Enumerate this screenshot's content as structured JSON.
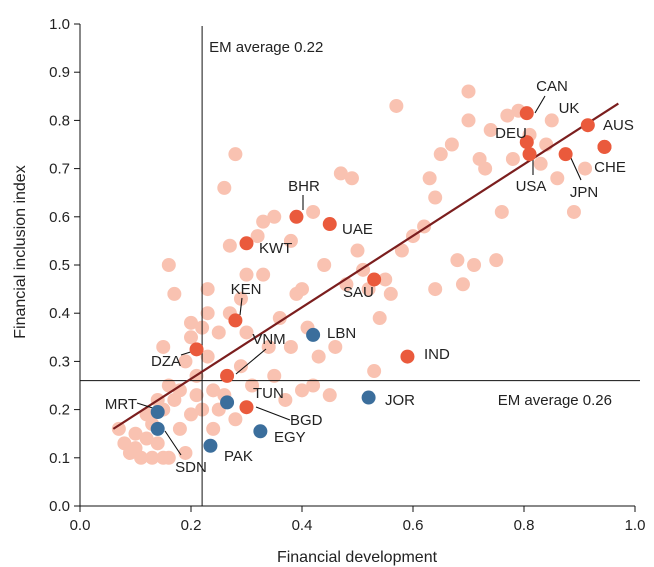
{
  "chart_data": {
    "type": "scatter",
    "xlabel": "Financial development",
    "ylabel": "Financial inclusion index",
    "xlim": [
      0.0,
      1.0
    ],
    "ylim": [
      0.0,
      1.0
    ],
    "x_ticks": [
      "0.0",
      "0.2",
      "0.4",
      "0.6",
      "0.8",
      "1.0"
    ],
    "y_ticks": [
      "0.0",
      "0.1",
      "0.2",
      "0.3",
      "0.4",
      "0.5",
      "0.6",
      "0.7",
      "0.8",
      "0.9",
      "1.0"
    ],
    "grid": false,
    "reference_lines": [
      {
        "orientation": "vertical",
        "value": 0.22,
        "label": "EM average 0.22"
      },
      {
        "orientation": "horizontal",
        "value": 0.26,
        "label": "EM average 0.26"
      }
    ],
    "trend_line": {
      "x": [
        0.06,
        0.97
      ],
      "y": [
        0.16,
        0.835
      ],
      "color": "#7b1e1e"
    },
    "colors": {
      "background_points": "#f9c2b1",
      "highlight_red": "#ea5a3c",
      "highlight_blue": "#3b6e9c"
    },
    "background_points": [
      {
        "x": 0.07,
        "y": 0.16
      },
      {
        "x": 0.08,
        "y": 0.13
      },
      {
        "x": 0.09,
        "y": 0.11
      },
      {
        "x": 0.1,
        "y": 0.12
      },
      {
        "x": 0.1,
        "y": 0.15
      },
      {
        "x": 0.11,
        "y": 0.1
      },
      {
        "x": 0.12,
        "y": 0.14
      },
      {
        "x": 0.12,
        "y": 0.19
      },
      {
        "x": 0.13,
        "y": 0.1
      },
      {
        "x": 0.13,
        "y": 0.17
      },
      {
        "x": 0.14,
        "y": 0.22
      },
      {
        "x": 0.14,
        "y": 0.13
      },
      {
        "x": 0.15,
        "y": 0.1
      },
      {
        "x": 0.15,
        "y": 0.2
      },
      {
        "x": 0.15,
        "y": 0.33
      },
      {
        "x": 0.16,
        "y": 0.1
      },
      {
        "x": 0.16,
        "y": 0.25
      },
      {
        "x": 0.16,
        "y": 0.5
      },
      {
        "x": 0.17,
        "y": 0.22
      },
      {
        "x": 0.17,
        "y": 0.44
      },
      {
        "x": 0.18,
        "y": 0.16
      },
      {
        "x": 0.18,
        "y": 0.24
      },
      {
        "x": 0.19,
        "y": 0.11
      },
      {
        "x": 0.19,
        "y": 0.3
      },
      {
        "x": 0.2,
        "y": 0.35
      },
      {
        "x": 0.2,
        "y": 0.19
      },
      {
        "x": 0.2,
        "y": 0.38
      },
      {
        "x": 0.21,
        "y": 0.27
      },
      {
        "x": 0.21,
        "y": 0.23
      },
      {
        "x": 0.22,
        "y": 0.37
      },
      {
        "x": 0.22,
        "y": 0.2
      },
      {
        "x": 0.23,
        "y": 0.31
      },
      {
        "x": 0.23,
        "y": 0.4
      },
      {
        "x": 0.23,
        "y": 0.45
      },
      {
        "x": 0.24,
        "y": 0.16
      },
      {
        "x": 0.24,
        "y": 0.24
      },
      {
        "x": 0.25,
        "y": 0.36
      },
      {
        "x": 0.25,
        "y": 0.2
      },
      {
        "x": 0.26,
        "y": 0.66
      },
      {
        "x": 0.26,
        "y": 0.23
      },
      {
        "x": 0.27,
        "y": 0.54
      },
      {
        "x": 0.27,
        "y": 0.4
      },
      {
        "x": 0.28,
        "y": 0.73
      },
      {
        "x": 0.28,
        "y": 0.18
      },
      {
        "x": 0.29,
        "y": 0.29
      },
      {
        "x": 0.29,
        "y": 0.43
      },
      {
        "x": 0.3,
        "y": 0.48
      },
      {
        "x": 0.3,
        "y": 0.36
      },
      {
        "x": 0.31,
        "y": 0.25
      },
      {
        "x": 0.32,
        "y": 0.56
      },
      {
        "x": 0.33,
        "y": 0.48
      },
      {
        "x": 0.33,
        "y": 0.59
      },
      {
        "x": 0.34,
        "y": 0.33
      },
      {
        "x": 0.35,
        "y": 0.6
      },
      {
        "x": 0.35,
        "y": 0.27
      },
      {
        "x": 0.36,
        "y": 0.39
      },
      {
        "x": 0.37,
        "y": 0.22
      },
      {
        "x": 0.38,
        "y": 0.55
      },
      {
        "x": 0.38,
        "y": 0.33
      },
      {
        "x": 0.39,
        "y": 0.44
      },
      {
        "x": 0.4,
        "y": 0.45
      },
      {
        "x": 0.4,
        "y": 0.24
      },
      {
        "x": 0.41,
        "y": 0.37
      },
      {
        "x": 0.42,
        "y": 0.61
      },
      {
        "x": 0.42,
        "y": 0.25
      },
      {
        "x": 0.43,
        "y": 0.31
      },
      {
        "x": 0.44,
        "y": 0.5
      },
      {
        "x": 0.45,
        "y": 0.23
      },
      {
        "x": 0.46,
        "y": 0.33
      },
      {
        "x": 0.47,
        "y": 0.69
      },
      {
        "x": 0.48,
        "y": 0.46
      },
      {
        "x": 0.49,
        "y": 0.68
      },
      {
        "x": 0.5,
        "y": 0.53
      },
      {
        "x": 0.51,
        "y": 0.49
      },
      {
        "x": 0.52,
        "y": 0.45
      },
      {
        "x": 0.53,
        "y": 0.28
      },
      {
        "x": 0.54,
        "y": 0.39
      },
      {
        "x": 0.55,
        "y": 0.47
      },
      {
        "x": 0.56,
        "y": 0.44
      },
      {
        "x": 0.57,
        "y": 0.83
      },
      {
        "x": 0.58,
        "y": 0.53
      },
      {
        "x": 0.6,
        "y": 0.56
      },
      {
        "x": 0.62,
        "y": 0.58
      },
      {
        "x": 0.63,
        "y": 0.68
      },
      {
        "x": 0.64,
        "y": 0.45
      },
      {
        "x": 0.64,
        "y": 0.64
      },
      {
        "x": 0.65,
        "y": 0.73
      },
      {
        "x": 0.67,
        "y": 0.75
      },
      {
        "x": 0.68,
        "y": 0.51
      },
      {
        "x": 0.69,
        "y": 0.46
      },
      {
        "x": 0.7,
        "y": 0.86
      },
      {
        "x": 0.7,
        "y": 0.8
      },
      {
        "x": 0.71,
        "y": 0.5
      },
      {
        "x": 0.72,
        "y": 0.72
      },
      {
        "x": 0.73,
        "y": 0.7
      },
      {
        "x": 0.74,
        "y": 0.78
      },
      {
        "x": 0.75,
        "y": 0.51
      },
      {
        "x": 0.76,
        "y": 0.61
      },
      {
        "x": 0.77,
        "y": 0.81
      },
      {
        "x": 0.78,
        "y": 0.72
      },
      {
        "x": 0.79,
        "y": 0.82
      },
      {
        "x": 0.81,
        "y": 0.77
      },
      {
        "x": 0.83,
        "y": 0.71
      },
      {
        "x": 0.84,
        "y": 0.75
      },
      {
        "x": 0.85,
        "y": 0.8
      },
      {
        "x": 0.86,
        "y": 0.68
      },
      {
        "x": 0.89,
        "y": 0.61
      },
      {
        "x": 0.91,
        "y": 0.7
      }
    ],
    "highlighted_points": [
      {
        "label": "CAN",
        "x": 0.805,
        "y": 0.815,
        "color": "red"
      },
      {
        "label": "UK",
        "x": 0.915,
        "y": 0.79,
        "color": "red"
      },
      {
        "label": "AUS",
        "x": 0.945,
        "y": 0.745,
        "color": "red"
      },
      {
        "label": "DEU",
        "x": 0.805,
        "y": 0.755,
        "color": "red"
      },
      {
        "label": "USA",
        "x": 0.81,
        "y": 0.73,
        "color": "red"
      },
      {
        "label": "JPN",
        "x": 0.875,
        "y": 0.73,
        "color": "red"
      },
      {
        "label": "CHE",
        "x": 0.945,
        "y": 0.745,
        "color": "red"
      },
      {
        "label": "BHR",
        "x": 0.39,
        "y": 0.6,
        "color": "red"
      },
      {
        "label": "UAE",
        "x": 0.45,
        "y": 0.585,
        "color": "red"
      },
      {
        "label": "KWT",
        "x": 0.3,
        "y": 0.545,
        "color": "red"
      },
      {
        "label": "SAU",
        "x": 0.53,
        "y": 0.47,
        "color": "red"
      },
      {
        "label": "KEN",
        "x": 0.28,
        "y": 0.385,
        "color": "red"
      },
      {
        "label": "DZA",
        "x": 0.21,
        "y": 0.325,
        "color": "red"
      },
      {
        "label": "VNM",
        "x": 0.265,
        "y": 0.27,
        "color": "red"
      },
      {
        "label": "IND",
        "x": 0.59,
        "y": 0.31,
        "color": "red"
      },
      {
        "label": "BGD",
        "x": 0.3,
        "y": 0.205,
        "color": "red"
      },
      {
        "label": "LBN",
        "x": 0.42,
        "y": 0.355,
        "color": "blue"
      },
      {
        "label": "TUN",
        "x": 0.265,
        "y": 0.215,
        "color": "blue"
      },
      {
        "label": "JOR",
        "x": 0.52,
        "y": 0.225,
        "color": "blue"
      },
      {
        "label": "MRT",
        "x": 0.14,
        "y": 0.195,
        "color": "blue"
      },
      {
        "label": "SDN",
        "x": 0.14,
        "y": 0.16,
        "color": "blue"
      },
      {
        "label": "EGY",
        "x": 0.325,
        "y": 0.155,
        "color": "blue"
      },
      {
        "label": "PAK",
        "x": 0.235,
        "y": 0.125,
        "color": "blue"
      }
    ]
  }
}
